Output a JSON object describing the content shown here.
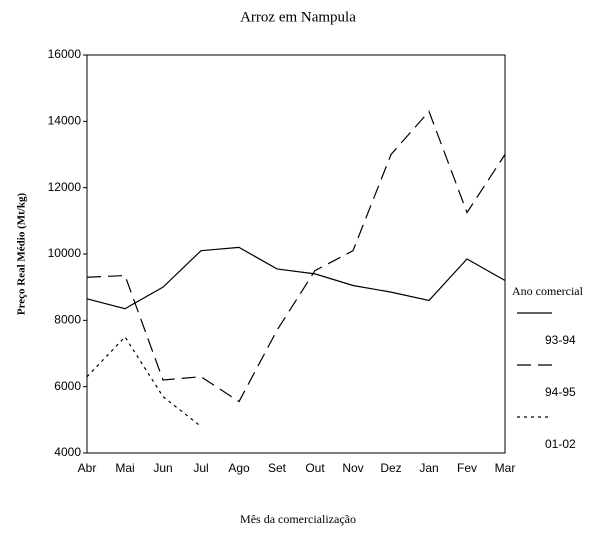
{
  "chart_data": {
    "type": "line",
    "title": "Arroz em Nampula",
    "x_label": "Mês da comercialização",
    "y_label": "Preço Real Médio (Mt/kg)",
    "categories": [
      "Abr",
      "Mai",
      "Jun",
      "Jul",
      "Ago",
      "Set",
      "Out",
      "Nov",
      "Dez",
      "Jan",
      "Fev",
      "Mar"
    ],
    "series": [
      {
        "name": "93-94",
        "color": "#000000",
        "dash": "solid",
        "values": [
          8650,
          8350,
          9000,
          10100,
          10200,
          9550,
          9400,
          9050,
          8850,
          8600,
          9850,
          9200
        ]
      },
      {
        "name": "94-95",
        "color": "#000000",
        "dash": "dashed",
        "values": [
          9300,
          9350,
          6200,
          6300,
          5550,
          7700,
          9500,
          10100,
          13000,
          14300,
          11250,
          13000
        ]
      },
      {
        "name": "01-02",
        "color": "#000000",
        "dash": "dotted",
        "values": [
          6300,
          7500,
          5700,
          4800,
          null,
          null,
          null,
          null,
          null,
          null,
          null,
          null
        ]
      }
    ],
    "legend_title": "Ano comercial",
    "legend": "right",
    "ylim": [
      4000,
      16000
    ],
    "yticks": [
      4000,
      6000,
      8000,
      10000,
      12000,
      14000,
      16000
    ]
  }
}
